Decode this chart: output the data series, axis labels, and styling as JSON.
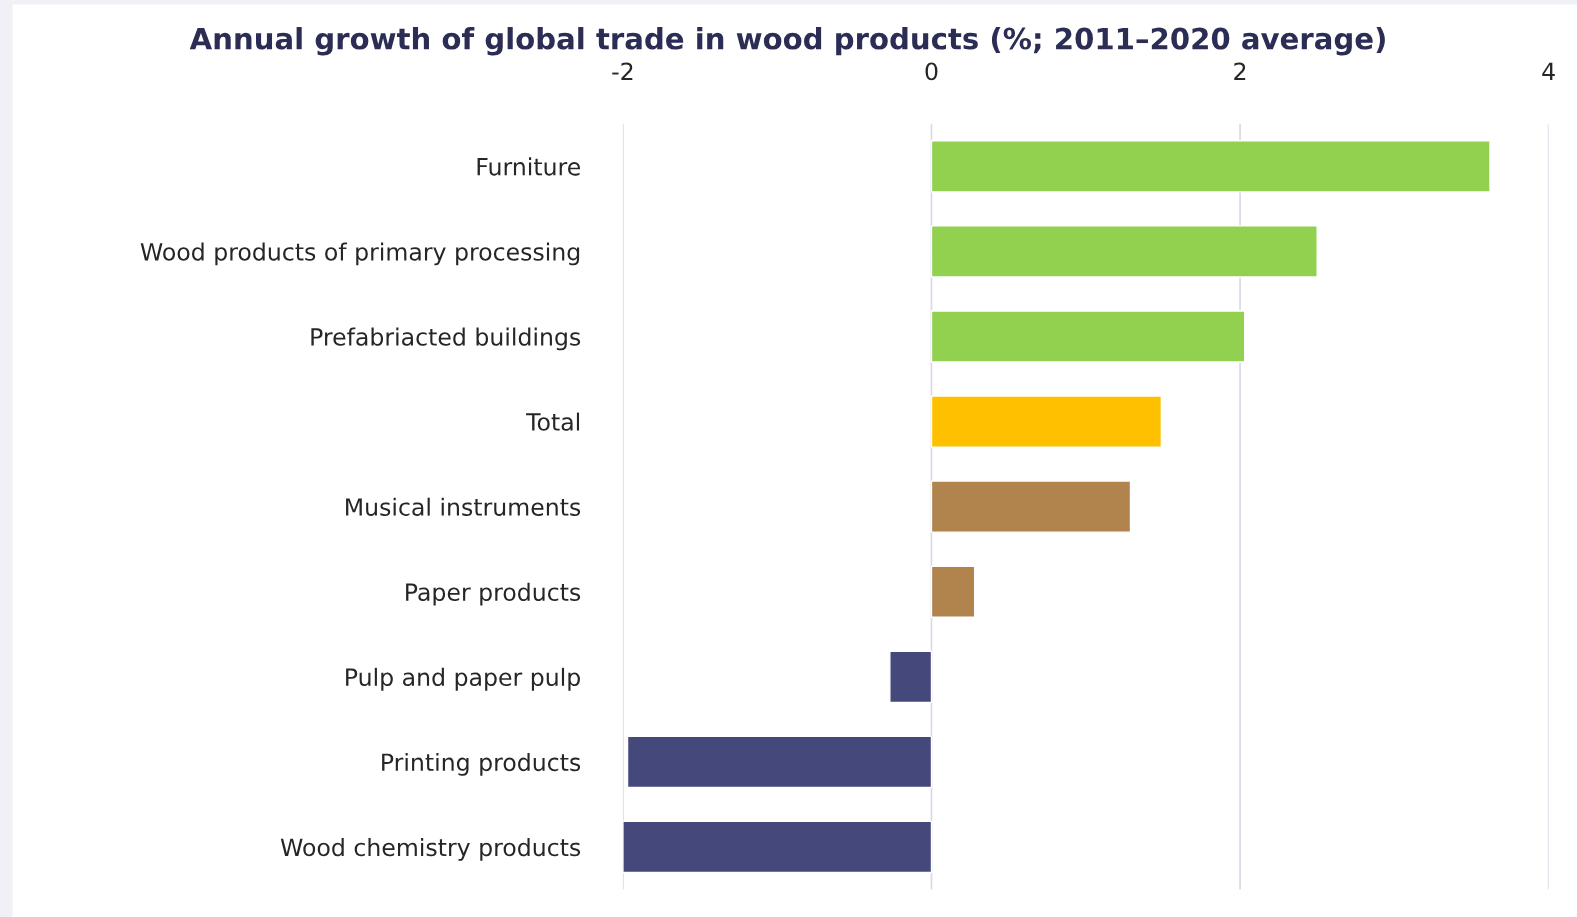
{
  "chart_data": {
    "type": "bar",
    "orientation": "horizontal",
    "title": "Annual growth of global trade in wood products (%; 2011–2020 average)",
    "categories": [
      "Furniture",
      "Wood products of primary processing",
      "Prefabriacted buildings",
      "Total",
      "Musical instruments",
      "Paper products",
      "Pulp and paper pulp",
      "Printing products",
      "Wood chemistry products"
    ],
    "values": [
      3.62,
      2.5,
      2.03,
      1.49,
      1.29,
      0.28,
      -0.27,
      -1.97,
      -2.0
    ],
    "colors": [
      "#92d050",
      "#92d050",
      "#92d050",
      "#ffc000",
      "#b0844c",
      "#b0844c",
      "#45487a",
      "#45487a",
      "#45487a"
    ],
    "xlim": [
      -2,
      4
    ],
    "xticks": [
      -2,
      0,
      2,
      4
    ],
    "grid": "x",
    "legend": false
  }
}
